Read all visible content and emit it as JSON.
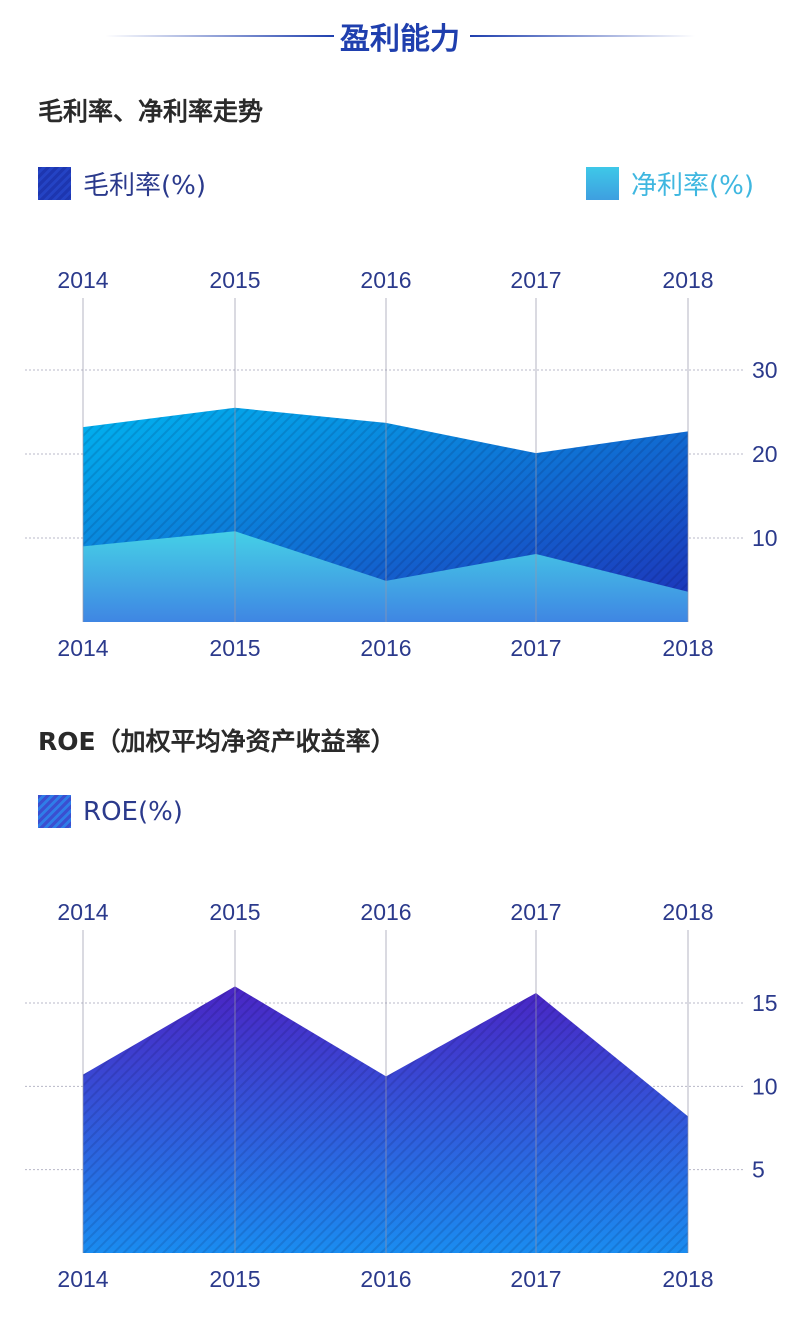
{
  "section_title": "盈利能力",
  "colors": {
    "accent": "#1f3fae",
    "gross": "#1d3bb8",
    "net": "#3ec3e6",
    "roe": "#3a3ad0",
    "text": "#2b3a8c"
  },
  "chart_data": [
    {
      "type": "area",
      "title": "毛利率、净利率走势",
      "legend_placement": "top",
      "categories": [
        "2014",
        "2015",
        "2016",
        "2017",
        "2018"
      ],
      "series": [
        {
          "name": "毛利率(%)",
          "values": [
            23.2,
            25.5,
            23.7,
            20.1,
            22.7
          ]
        },
        {
          "name": "净利率(%)",
          "values": [
            9.0,
            10.8,
            4.9,
            8.1,
            3.6
          ]
        }
      ],
      "yticks": [
        "10",
        "20",
        "30"
      ],
      "ylim": [
        0,
        30
      ],
      "grid": true
    },
    {
      "type": "area",
      "title": "ROE（加权平均净资产收益率）",
      "legend_placement": "top-left",
      "categories": [
        "2014",
        "2015",
        "2016",
        "2017",
        "2018"
      ],
      "series": [
        {
          "name": "ROE(%)",
          "values": [
            10.7,
            16.0,
            10.6,
            15.6,
            8.2
          ]
        }
      ],
      "yticks": [
        "5",
        "10",
        "15"
      ],
      "ylim": [
        0,
        15
      ],
      "grid": true
    }
  ]
}
